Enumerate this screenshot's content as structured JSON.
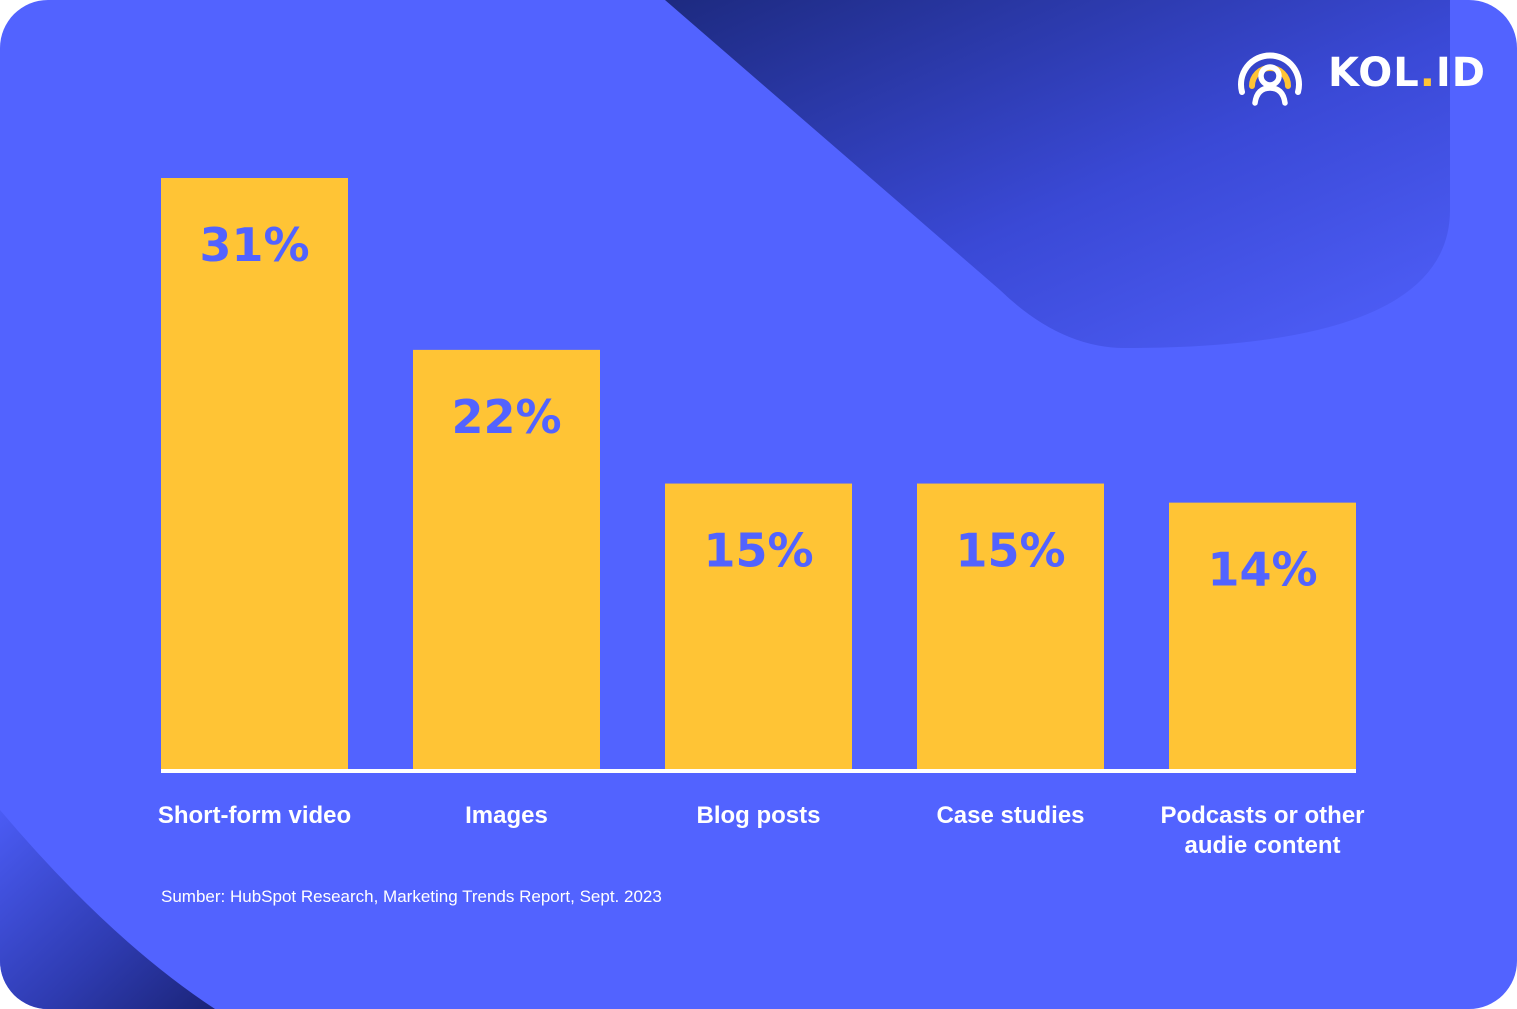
{
  "brand": {
    "name_before_dot": "KOL",
    "dot": ".",
    "name_after_dot": "ID",
    "accent_color": "#ffc435"
  },
  "colors": {
    "background": "#5263ff",
    "bar": "#ffc435",
    "value_text": "#5263ff",
    "baseline": "#ffffff",
    "label_text": "#ffffff"
  },
  "chart_data": {
    "type": "bar",
    "categories": [
      [
        "Short-form video"
      ],
      [
        "Images"
      ],
      [
        "Blog posts"
      ],
      [
        "Case studies"
      ],
      [
        "Podcasts or other",
        "audie content"
      ]
    ],
    "values": [
      31,
      22,
      15,
      15,
      14
    ],
    "value_labels": [
      "31%",
      "22%",
      "15%",
      "15%",
      "14%"
    ],
    "unit": "%",
    "grid": false,
    "legend": "none"
  },
  "source": "Sumber: HubSpot Research, Marketing Trends Report, Sept. 2023"
}
